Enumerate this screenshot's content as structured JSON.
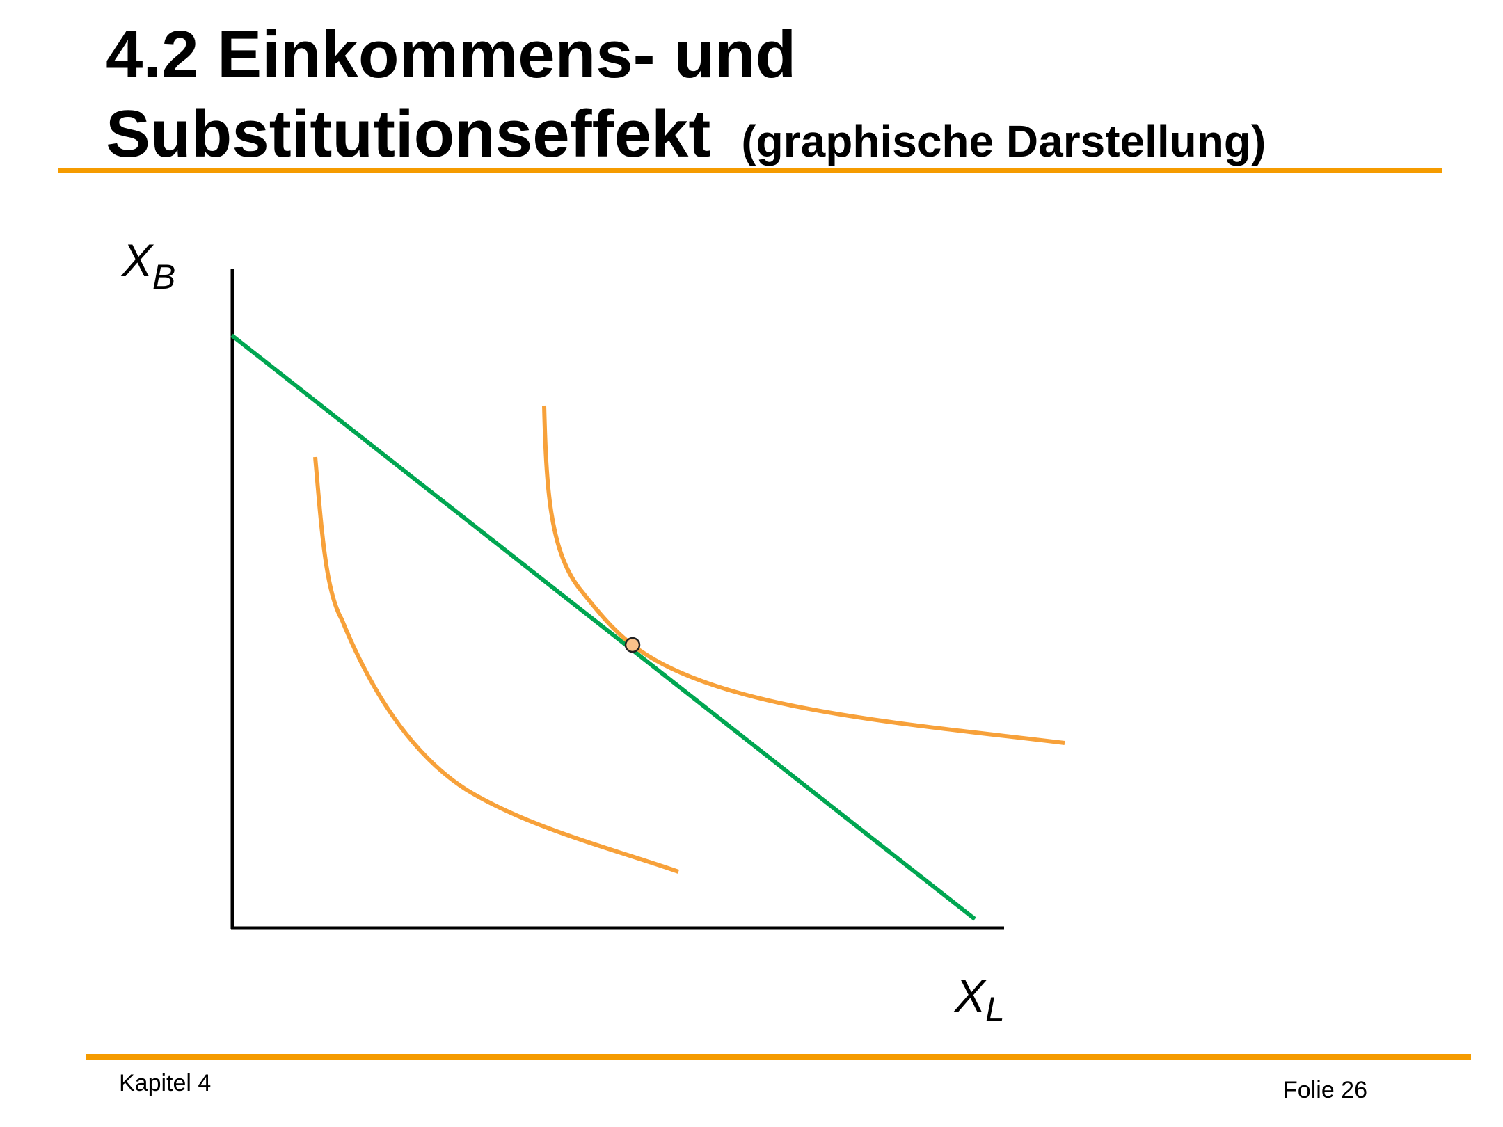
{
  "slide": {
    "title_line1": "4.2 Einkommens- und",
    "title_line2": "Substitutionseffekt",
    "title_sub": "(graphische Darstellung)"
  },
  "diagram": {
    "y_axis_label": "X",
    "y_axis_subscript": "B",
    "x_axis_label": "X",
    "x_axis_subscript": "L",
    "colors": {
      "accent_rule": "#f59b00",
      "budget_line": "#00a651",
      "indifference_curve": "#f7a13a",
      "tangency_point": "#f9c18a"
    }
  },
  "footer": {
    "chapter": "Kapitel 4",
    "slide_number": "Folie 26"
  }
}
